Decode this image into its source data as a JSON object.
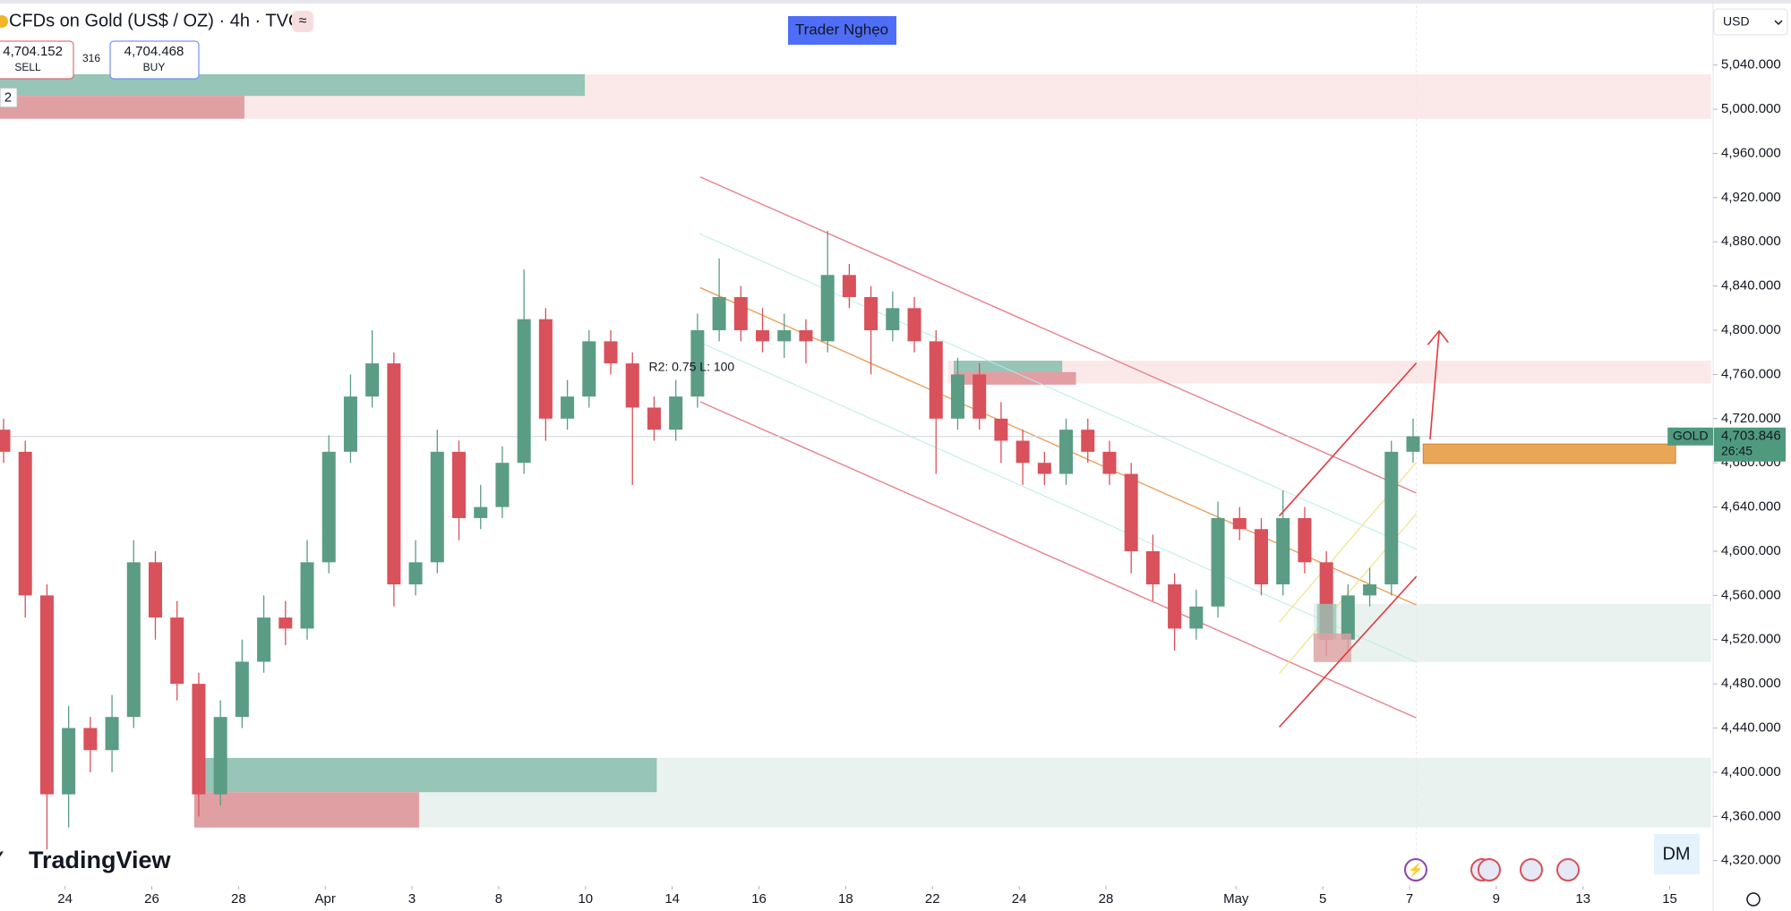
{
  "chart_data": {
    "type": "candlestick",
    "title": "CFDs on Gold (US$ / OZ) · 4h · TVC",
    "up_color": "#5b9c85",
    "down_color": "#d9515a",
    "x": [
      0,
      3,
      6,
      9,
      12,
      15,
      18,
      21,
      24,
      27,
      30,
      33,
      36,
      39,
      42,
      45,
      48,
      51,
      54,
      57,
      60,
      63,
      66,
      69,
      72,
      75,
      78,
      81,
      84,
      87,
      90,
      93,
      96,
      99,
      102,
      105,
      108,
      111,
      114,
      117,
      120,
      123,
      126,
      129,
      132,
      135,
      138,
      141,
      144,
      147,
      150,
      153,
      156,
      159,
      162,
      165,
      168,
      171,
      174,
      177,
      180,
      183,
      186,
      189,
      192,
      195
    ],
    "open": [
      4710,
      4690,
      4560,
      4380,
      4440,
      4420,
      4450,
      4590,
      4540,
      4480,
      4380,
      4450,
      4500,
      4540,
      4530,
      4590,
      4690,
      4740,
      4770,
      4570,
      4590,
      4690,
      4630,
      4640,
      4680,
      4810,
      4720,
      4740,
      4790,
      4770,
      4730,
      4710,
      4740,
      4800,
      4830,
      4800,
      4790,
      4800,
      4790,
      4850,
      4830,
      4800,
      4820,
      4790,
      4720,
      4760,
      4720,
      4700,
      4680,
      4670,
      4710,
      4690,
      4670,
      4600,
      4570,
      4530,
      4550,
      4630,
      4620,
      4570,
      4630,
      4590,
      4520,
      4560,
      4570,
      4690
    ],
    "high": [
      4720,
      4700,
      4570,
      4460,
      4450,
      4470,
      4610,
      4600,
      4555,
      4490,
      4465,
      4520,
      4560,
      4555,
      4610,
      4705,
      4760,
      4800,
      4780,
      4610,
      4710,
      4700,
      4660,
      4695,
      4855,
      4820,
      4755,
      4800,
      4800,
      4780,
      4740,
      4755,
      4815,
      4865,
      4840,
      4820,
      4815,
      4810,
      4890,
      4860,
      4840,
      4835,
      4830,
      4800,
      4775,
      4770,
      4735,
      4710,
      4690,
      4720,
      4720,
      4700,
      4680,
      4615,
      4580,
      4565,
      4645,
      4640,
      4630,
      4655,
      4640,
      4600,
      4570,
      4585,
      4700,
      4720
    ],
    "low": [
      4680,
      4540,
      4330,
      4350,
      4400,
      4400,
      4440,
      4520,
      4465,
      4360,
      4370,
      4440,
      4490,
      4515,
      4520,
      4580,
      4680,
      4730,
      4550,
      4560,
      4580,
      4610,
      4620,
      4630,
      4670,
      4700,
      4710,
      4730,
      4760,
      4660,
      4700,
      4700,
      4730,
      4790,
      4790,
      4780,
      4775,
      4770,
      4780,
      4820,
      4760,
      4790,
      4780,
      4670,
      4710,
      4710,
      4680,
      4660,
      4660,
      4660,
      4680,
      4660,
      4580,
      4555,
      4510,
      4520,
      4540,
      4610,
      4560,
      4560,
      4580,
      4505,
      4510,
      4550,
      4560,
      4680
    ],
    "close": [
      4690,
      4560,
      4380,
      4440,
      4420,
      4450,
      4590,
      4540,
      4480,
      4380,
      4450,
      4500,
      4540,
      4530,
      4590,
      4690,
      4740,
      4770,
      4570,
      4590,
      4690,
      4630,
      4640,
      4680,
      4810,
      4720,
      4740,
      4790,
      4770,
      4730,
      4710,
      4740,
      4800,
      4830,
      4800,
      4790,
      4800,
      4790,
      4850,
      4830,
      4800,
      4820,
      4790,
      4720,
      4760,
      4720,
      4700,
      4680,
      4670,
      4710,
      4690,
      4670,
      4600,
      4570,
      4530,
      4550,
      4630,
      4620,
      4570,
      4630,
      4590,
      4520,
      4560,
      4570,
      4690,
      4704
    ],
    "xlim": [
      0,
      237
    ],
    "xticks": [
      {
        "value": 9,
        "label": "24"
      },
      {
        "value": 21,
        "label": "26"
      },
      {
        "value": 33,
        "label": "28"
      },
      {
        "value": 45,
        "label": "Apr"
      },
      {
        "value": 57,
        "label": "3"
      },
      {
        "value": 69,
        "label": "8"
      },
      {
        "value": 81,
        "label": "10"
      },
      {
        "value": 93,
        "label": "14"
      },
      {
        "value": 105,
        "label": "16"
      },
      {
        "value": 117,
        "label": "18"
      },
      {
        "value": 129,
        "label": "22"
      },
      {
        "value": 141,
        "label": "24"
      },
      {
        "value": 153,
        "label": "28"
      },
      {
        "value": 171,
        "label": "May"
      },
      {
        "value": 183,
        "label": "5"
      },
      {
        "value": 195,
        "label": "7"
      },
      {
        "value": 207,
        "label": "9"
      },
      {
        "value": 219,
        "label": "13"
      },
      {
        "value": 231,
        "label": "15"
      }
    ],
    "ylim": [
      4300,
      5100
    ],
    "yticks": [
      {
        "value": 5040,
        "label": "5,040.000"
      },
      {
        "value": 5000,
        "label": "5,000.000"
      },
      {
        "value": 4960,
        "label": "4,960.000"
      },
      {
        "value": 4920,
        "label": "4,920.000"
      },
      {
        "value": 4880,
        "label": "4,880.000"
      },
      {
        "value": 4840,
        "label": "4,840.000"
      },
      {
        "value": 4800,
        "label": "4,800.000"
      },
      {
        "value": 4760,
        "label": "4,760.000"
      },
      {
        "value": 4720,
        "label": "4,720.000"
      },
      {
        "value": 4680,
        "label": "4,680.000"
      },
      {
        "value": 4640,
        "label": "4,640.000"
      },
      {
        "value": 4600,
        "label": "4,600.000"
      },
      {
        "value": 4560,
        "label": "4,560.000"
      },
      {
        "value": 4520,
        "label": "4,520.000"
      },
      {
        "value": 4480,
        "label": "4,480.000"
      },
      {
        "value": 4440,
        "label": "4,440.000"
      },
      {
        "value": 4400,
        "label": "4,400.000"
      },
      {
        "value": 4360,
        "label": "4,360.000"
      },
      {
        "value": 4320,
        "label": "4,320.000"
      }
    ],
    "last_price": {
      "value": 4703.846,
      "label": "4,703.846"
    },
    "symbol_tag": "GOLD",
    "countdown": "26:45"
  },
  "ui": {
    "sell_price": "4,704.152",
    "sell": "SELL",
    "spread": "316",
    "buy_price": "4,704.468",
    "buy": "BUY",
    "author": "Trader Nghẹo",
    "zone_count": "2",
    "regression": "R2: 0.75 L: 100",
    "currency": "USD",
    "brand": "TradingView",
    "watermark": "DM"
  }
}
